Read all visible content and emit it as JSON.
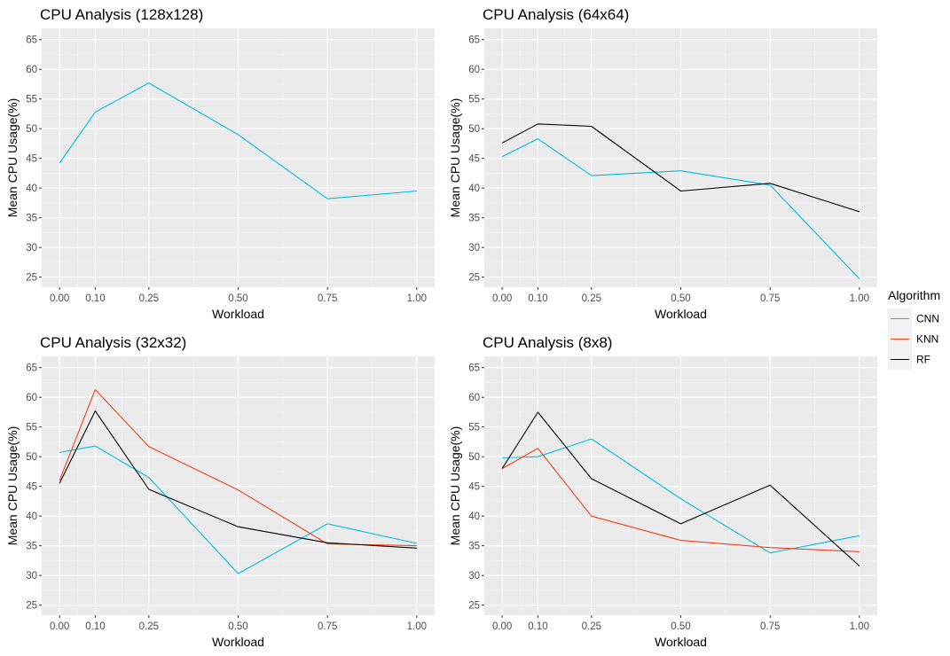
{
  "legend": {
    "title": "Algorithm",
    "placement": "right",
    "items": [
      {
        "name": "CNN",
        "color": "#00BFE0"
      },
      {
        "name": "KNN",
        "color": "#F1421A"
      },
      {
        "name": "RF",
        "color": "#000000"
      }
    ]
  },
  "chart_data": [
    {
      "type": "line",
      "title": "CPU Analysis (128x128)",
      "xlabel": "Workload",
      "ylabel": "Mean CPU Usage(%)",
      "x": [
        0.0,
        0.1,
        0.25,
        0.5,
        0.75,
        1.0
      ],
      "xticks": [
        "0.00",
        "0.10",
        "0.25",
        "0.50",
        "0.75",
        "1.00"
      ],
      "yticks": [
        "25",
        "30",
        "35",
        "40",
        "45",
        "50",
        "55",
        "60",
        "65"
      ],
      "xlim": [
        -0.05,
        1.05
      ],
      "ylim": [
        23.3,
        66.9
      ],
      "grid": true,
      "series": [
        {
          "name": "CNN",
          "color": "#00BFE0",
          "values": [
            44.2,
            52.8,
            57.7,
            49.0,
            38.2,
            39.5
          ]
        }
      ]
    },
    {
      "type": "line",
      "title": "CPU Analysis (64x64)",
      "xlabel": "Workload",
      "ylabel": "Mean CPU Usage(%)",
      "x": [
        0.0,
        0.1,
        0.25,
        0.5,
        0.75,
        1.0
      ],
      "xticks": [
        "0.00",
        "0.10",
        "0.25",
        "0.50",
        "0.75",
        "1.00"
      ],
      "yticks": [
        "25",
        "30",
        "35",
        "40",
        "45",
        "50",
        "55",
        "60",
        "65"
      ],
      "xlim": [
        -0.05,
        1.05
      ],
      "ylim": [
        23.3,
        66.9
      ],
      "grid": true,
      "series": [
        {
          "name": "CNN",
          "color": "#00BFE0",
          "values": [
            45.3,
            48.3,
            42.1,
            42.9,
            40.5,
            24.7
          ]
        },
        {
          "name": "RF",
          "color": "#000000",
          "values": [
            47.6,
            50.8,
            50.4,
            39.5,
            40.8,
            36.0
          ]
        }
      ]
    },
    {
      "type": "line",
      "title": "CPU Analysis (32x32)",
      "xlabel": "Workload",
      "ylabel": "Mean CPU Usage(%)",
      "x": [
        0.0,
        0.1,
        0.25,
        0.5,
        0.75,
        1.0
      ],
      "xticks": [
        "0.00",
        "0.10",
        "0.25",
        "0.50",
        "0.75",
        "1.00"
      ],
      "yticks": [
        "25",
        "30",
        "35",
        "40",
        "45",
        "50",
        "55",
        "60",
        "65"
      ],
      "xlim": [
        -0.05,
        1.05
      ],
      "ylim": [
        23.3,
        66.9
      ],
      "grid": true,
      "series": [
        {
          "name": "CNN",
          "color": "#00BFE0",
          "values": [
            50.7,
            51.8,
            46.5,
            30.3,
            38.7,
            35.4
          ]
        },
        {
          "name": "KNN",
          "color": "#F1421A",
          "values": [
            46.0,
            61.3,
            51.7,
            44.4,
            35.3,
            35.0
          ]
        },
        {
          "name": "RF",
          "color": "#000000",
          "values": [
            45.5,
            57.7,
            44.5,
            38.2,
            35.5,
            34.6
          ]
        }
      ]
    },
    {
      "type": "line",
      "title": "CPU Analysis (8x8)",
      "xlabel": "Workload",
      "ylabel": "Mean CPU Usage(%)",
      "x": [
        0.0,
        0.1,
        0.25,
        0.5,
        0.75,
        1.0
      ],
      "xticks": [
        "0.00",
        "0.10",
        "0.25",
        "0.50",
        "0.75",
        "1.00"
      ],
      "yticks": [
        "25",
        "30",
        "35",
        "40",
        "45",
        "50",
        "55",
        "60",
        "65"
      ],
      "xlim": [
        -0.05,
        1.05
      ],
      "ylim": [
        23.3,
        66.9
      ],
      "grid": true,
      "series": [
        {
          "name": "CNN",
          "color": "#00BFE0",
          "values": [
            49.8,
            50.0,
            53.0,
            42.9,
            33.8,
            36.7
          ]
        },
        {
          "name": "KNN",
          "color": "#F1421A",
          "values": [
            48.0,
            51.4,
            40.0,
            35.9,
            34.7,
            34.0
          ]
        },
        {
          "name": "RF",
          "color": "#000000",
          "values": [
            48.0,
            57.5,
            46.3,
            38.7,
            45.2,
            31.6
          ]
        }
      ]
    }
  ]
}
